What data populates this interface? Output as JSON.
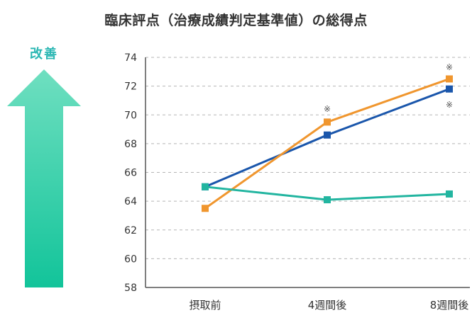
{
  "chart_data": {
    "type": "line",
    "title": "臨床評点（治療成績判定基準値）の総得点",
    "xlabel": "",
    "ylabel": "",
    "categories": [
      "摂取前",
      "4週間後",
      "8週間後"
    ],
    "ylim": [
      58,
      74
    ],
    "yticks": [
      58,
      60,
      62,
      64,
      66,
      68,
      70,
      72,
      74
    ],
    "grid": true,
    "series": [
      {
        "color": "#1a56ab",
        "marker": "square",
        "values": [
          65.0,
          68.6,
          71.8
        ]
      },
      {
        "color": "#f0962e",
        "marker": "square",
        "values": [
          63.5,
          69.5,
          72.5
        ]
      },
      {
        "color": "#22b5a0",
        "marker": "square",
        "values": [
          65.0,
          64.1,
          64.5
        ]
      }
    ],
    "annotations": [
      {
        "text": "※",
        "category": "4週間後",
        "y": 70.4,
        "series_color": "#f0962e"
      },
      {
        "text": "※",
        "category": "8週間後",
        "y": 73.3,
        "series_color": "#f0962e"
      },
      {
        "text": "※",
        "category": "8週間後",
        "y": 70.7,
        "series_color": "#1a56ab"
      }
    ],
    "indicator": {
      "label": "改善",
      "direction": "up",
      "color_top": "#6fdfc0",
      "color_bottom": "#12c49a"
    }
  }
}
